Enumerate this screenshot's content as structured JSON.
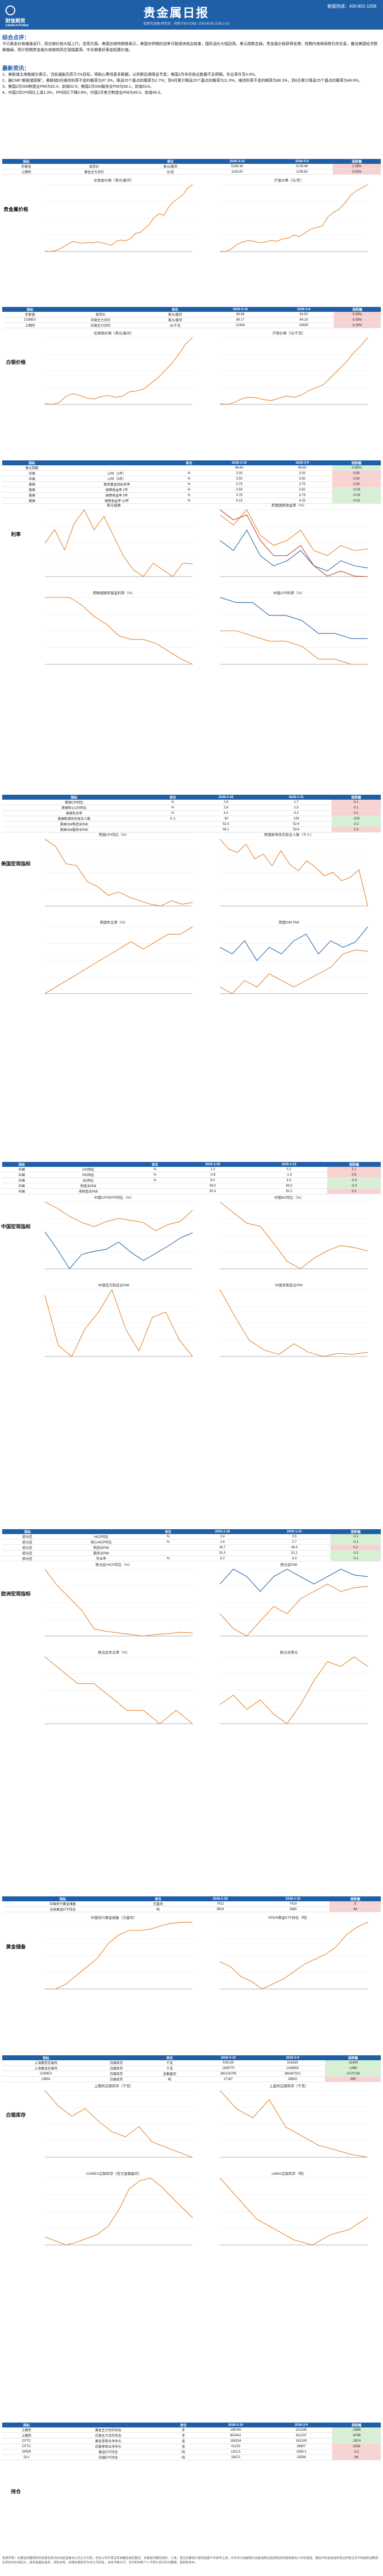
{
  "header": {
    "brand_line1": "财信期货",
    "brand_line2": "CAIXIN FUTURES",
    "title": "贵金属日报",
    "meta_line": "宏观与金融   研究员：向明   F3071068 / Z0014034   2026-3-10",
    "hotline": "客服热线：400-801-1058"
  },
  "summary": {
    "heading": "综合点评：",
    "text": "今日黄金价格偏强运行，而白银价格大幅上行。宏观方面，美国总统特朗普表示，美国对伊朗的战争可能很快就会结束，国际油价大幅回落，美元指数走弱，贵金属价格获得支撑。短期内地缘局势仍存反复，叠加美国经济数据偏弱，预计短期贵金属价格维持高位宽幅震荡，中长期看好黄金配置价值。"
  },
  "news": {
    "heading": "最新资讯：",
    "items": [
      "1、美联储主席鲍威尔表示，当前通胀仍高于2%目标，将耐心等待更多数据，以判断后续降息节奏；美国2月非农就业数据不及预期，失业率升至4.4%。",
      "2、据CME“美联储观察”，美联储3月维持利率不变的概率为97.3%，降息25个基点的概率为2.7%；到4月累计降息25个基点的概率为11.5%，维持利率不变的概率为88.3%，到6月累计降息25个基点的概率为48.6%。",
      "3、美国2月ISM制造业PMI为52.4，前值52.6；美国2月ISM服务业PMI为56.1，前值53.8。",
      "4、中国2月CPI同比上涨1.3%，PPI同比下降0.9%，中国2月官方制造业PMI为49.0，前值49.3。"
    ]
  },
  "gold": {
    "side": "贵金属价格",
    "headers": [
      "指标",
      "",
      "单位",
      "2026-3-10",
      "2026-3-9",
      "涨跌幅"
    ],
    "rows": [
      [
        "伦敦金",
        "现货价",
        "美元/盎司",
        "5186.36",
        "5126.64",
        "1.16%"
      ],
      [
        "上期所",
        "黄金主力合约",
        "元/克",
        "1143.60",
        "1138.82",
        "0.42%"
      ]
    ],
    "charts": [
      {
        "title": "伦敦金价格（美元/盎司）",
        "series": [
          [
            1320,
            1290,
            1330,
            1420,
            1580,
            1750,
            1880,
            1800,
            1770,
            1830,
            1790,
            1860,
            1800,
            1720,
            1650,
            1900,
            1960,
            1930,
            2050,
            2350,
            2400,
            2650,
            2900,
            3300,
            3500,
            3400,
            3900,
            4200,
            4400,
            4600,
            5000,
            5186
          ]
        ]
      },
      {
        "title": "沪金价格（元/克）",
        "series": [
          [
            270,
            265,
            300,
            360,
            390,
            410,
            400,
            380,
            390,
            410,
            400,
            430,
            440,
            480,
            460,
            510,
            560,
            580,
            600,
            720,
            780,
            820,
            900,
            1000,
            1060,
            1100,
            1140
          ]
        ]
      }
    ]
  },
  "silver": {
    "side": "白银价格",
    "headers": [
      "指标",
      "",
      "单位",
      "2026-3-10",
      "2026-3-9",
      "涨跌幅"
    ],
    "rows": [
      [
        "伦敦银",
        "现货价",
        "美元/盎司",
        "88.96",
        "84.50",
        "5.28%"
      ],
      [
        "COMEX",
        "白银主力合约",
        "美元/盎司",
        "89.17",
        "84.18",
        "5.93%"
      ],
      [
        "上期所",
        "白银主力合约",
        "元/千克",
        "21904",
        "20630",
        "6.18%"
      ]
    ],
    "charts": [
      {
        "title": "伦敦银价格（美元/盎司）",
        "series": [
          [
            16,
            15,
            17,
            24,
            27,
            25,
            22,
            21,
            24,
            25,
            23,
            24,
            29,
            30,
            32,
            38,
            44,
            52,
            60,
            70,
            82,
            89
          ]
        ]
      },
      {
        "title": "沪银价格（元/千克）",
        "series": [
          [
            3800,
            3600,
            4200,
            5200,
            5600,
            5400,
            4900,
            4700,
            5300,
            5900,
            5600,
            6100,
            7400,
            8200,
            9000,
            11000,
            13000,
            15000,
            17500,
            19500,
            21904
          ]
        ]
      }
    ]
  },
  "rates": {
    "side": "利率",
    "headers": [
      "指标",
      "",
      "单位",
      "2026-3-10",
      "2026-3-9",
      "涨跌幅"
    ],
    "rows": [
      [
        "美元指数",
        "",
        "",
        "98.90",
        "99.55",
        "-0.65%"
      ],
      [
        "中国",
        "LPR（1年）",
        "%",
        "3.00",
        "3.00",
        "0.00"
      ],
      [
        "中国",
        "LPR（5年）",
        "%",
        "3.50",
        "3.50",
        "0.00"
      ],
      [
        "美国",
        "联邦基金目标利率",
        "%",
        "3.75",
        "3.75",
        "0.00"
      ],
      [
        "美国",
        "国债收益率 2年",
        "%",
        "3.59",
        "3.62",
        "-0.03"
      ],
      [
        "美国",
        "国债收益率 5年",
        "%",
        "3.76",
        "3.79",
        "-0.03"
      ],
      [
        "美国",
        "国债收益率 10年",
        "%",
        "4.13",
        "4.15",
        "-0.02"
      ]
    ],
    "charts": [
      {
        "title": "美元指数",
        "series": [
          [
            102,
            104,
            101,
            105,
            107,
            104,
            106,
            103,
            100,
            98,
            97,
            99,
            98,
            97,
            99,
            98.9
          ]
        ]
      },
      {
        "title": "美国国债收益率（%）",
        "series": [
          [
            4.8,
            4.6,
            4.9,
            4.4,
            4.2,
            4.3,
            4.5,
            4.1,
            4.0,
            4.2,
            4.1,
            4.13
          ],
          [
            4.3,
            4.1,
            4.5,
            4.0,
            3.8,
            3.9,
            4.1,
            3.8,
            3.7,
            3.9,
            3.8,
            3.76
          ],
          [
            4.9,
            4.7,
            4.8,
            4.3,
            4.0,
            4.0,
            4.2,
            3.8,
            3.6,
            3.7,
            3.6,
            3.59
          ]
        ]
      },
      {
        "title": "美联储联邦基金利率（%）",
        "series": [
          [
            5.5,
            5.5,
            5.5,
            5.3,
            5.0,
            4.8,
            4.5,
            4.4,
            4.4,
            4.3,
            4.1,
            3.9,
            3.75
          ]
        ]
      },
      {
        "title": "中国LPR利率（%）",
        "series": [
          [
            3.65,
            3.65,
            3.55,
            3.45,
            3.45,
            3.35,
            3.1,
            3.1,
            3.0,
            3.0
          ],
          [
            4.3,
            4.2,
            4.2,
            3.95,
            3.95,
            3.85,
            3.6,
            3.6,
            3.5,
            3.5
          ]
        ]
      }
    ]
  },
  "us_data": {
    "side": "美国宏观指标",
    "headers": [
      "指标",
      "",
      "单位",
      "2026-2-28",
      "2026-1-31",
      "涨跌幅"
    ],
    "rows": [
      [
        "美国CPI同比",
        "",
        "%",
        "2.8",
        "2.7",
        "0.1"
      ],
      [
        "美国核心CPI同比",
        "",
        "%",
        "2.6",
        "2.5",
        "0.1"
      ],
      [
        "美国失业率",
        "",
        "%",
        "4.4",
        "4.3",
        "0.1"
      ],
      [
        "美国新增非农就业人数",
        "",
        "千人",
        "-92",
        "126",
        "-218"
      ],
      [
        "美国ISM制造业PMI",
        "",
        "",
        "52.4",
        "52.6",
        "-0.2"
      ],
      [
        "美国ISM服务业PMI",
        "",
        "",
        "56.1",
        "53.8",
        "2.3"
      ]
    ],
    "charts": [
      {
        "title": "美国CPI同比（%）",
        "series": [
          [
            6.4,
            6.0,
            5.0,
            4.9,
            4.0,
            3.7,
            3.2,
            3.4,
            3.1,
            2.9,
            2.7,
            2.6,
            2.9,
            2.7,
            2.8
          ]
        ]
      },
      {
        "title": "美国新增非农就业人数（千人）",
        "series": [
          [
            310,
            250,
            230,
            280,
            190,
            220,
            150,
            240,
            160,
            120,
            180,
            140,
            90,
            110,
            60,
            80,
            126,
            -92
          ]
        ]
      },
      {
        "title": "美国失业率（%）",
        "series": [
          [
            3.5,
            3.6,
            3.7,
            3.8,
            3.9,
            4.0,
            4.1,
            4.2,
            4.1,
            4.2,
            4.3,
            4.3,
            4.4
          ]
        ]
      },
      {
        "title": "美国ISM PMI",
        "series": [
          [
            47,
            46,
            48,
            47,
            49,
            48,
            47,
            48,
            49,
            50,
            52,
            52.6,
            52.4
          ],
          [
            53,
            52,
            54,
            51,
            53,
            52,
            54,
            55,
            52,
            54,
            53,
            53.8,
            56.1
          ]
        ]
      }
    ]
  },
  "cn_data": {
    "side": "中国宏观指标",
    "headers": [
      "指标",
      "",
      "单位",
      "2026-2-28",
      "2026-1-31",
      "涨跌幅"
    ],
    "rows": [
      [
        "中国",
        "CPI同比",
        "%",
        "1.3",
        "0.2",
        "1.1"
      ],
      [
        "中国",
        "PPI同比",
        "%",
        "-0.9",
        "-1.4",
        "0.5"
      ],
      [
        "中国",
        "M2同比",
        "%",
        "8.0",
        "8.3",
        "-0.3"
      ],
      [
        "中国",
        "制造业PMI",
        "",
        "49.0",
        "49.3",
        "-0.3"
      ],
      [
        "中国",
        "非制造业PMI",
        "",
        "50.4",
        "50.2",
        "0.2"
      ]
    ],
    "charts": [
      {
        "title": "中国CPI与PPI同比（%）",
        "series": [
          [
            2.1,
            1.5,
            0.7,
            0.1,
            -0.3,
            0.2,
            0.5,
            0.3,
            0.1,
            -0.7,
            -0.1,
            0.2,
            1.3
          ],
          [
            -0.8,
            -2.5,
            -4.4,
            -3.0,
            -2.7,
            -2.5,
            -1.8,
            -2.8,
            -3.6,
            -2.9,
            -2.2,
            -1.4,
            -0.9
          ]
        ]
      },
      {
        "title": "中国M2同比（%）",
        "series": [
          [
            12.6,
            11.6,
            10.6,
            10.3,
            8.7,
            7.0,
            6.3,
            7.3,
            8.0,
            8.5,
            8.3,
            8.0
          ]
        ]
      },
      {
        "title": "中国官方制造业PMI",
        "series": [
          [
            50.1,
            49.2,
            49.0,
            49.5,
            49.8,
            50.2,
            49.5,
            49.1,
            49.7,
            49.8,
            49.3,
            49.0
          ]
        ]
      },
      {
        "title": "中国非制造业PMI",
        "series": [
          [
            56.3,
            53.8,
            51.5,
            50.6,
            50.2,
            51.2,
            50.4,
            50.0,
            50.3,
            50.2,
            50.4
          ]
        ]
      }
    ]
  },
  "eu_data": {
    "side": "欧洲宏观指标",
    "headers": [
      "指标",
      "",
      "单位",
      "2026-2-28",
      "2026-1-31",
      "涨跌幅"
    ],
    "rows": [
      [
        "欧元区",
        "HICP同比",
        "%",
        "2.4",
        "2.5",
        "-0.1"
      ],
      [
        "欧元区",
        "核心HICP同比",
        "%",
        "2.6",
        "2.7",
        "-0.1"
      ],
      [
        "欧元区",
        "制造业PMI",
        "",
        "49.7",
        "49.5",
        "0.2"
      ],
      [
        "欧元区",
        "服务业PMI",
        "",
        "51.0",
        "51.2",
        "-0.2"
      ],
      [
        "欧元区",
        "失业率",
        "%",
        "6.2",
        "6.3",
        "-0.1"
      ]
    ],
    "charts": [
      {
        "title": "欧元区HICP同比（%）",
        "series": [
          [
            10.6,
            8.5,
            6.9,
            5.3,
            2.9,
            2.6,
            2.4,
            2.2,
            2.0,
            2.2,
            2.3,
            2.5,
            2.4
          ]
        ]
      },
      {
        "title": "欧元区PMI",
        "series": [
          [
            46,
            44,
            43,
            45,
            47,
            46,
            48,
            49,
            50,
            49,
            49.5,
            49.7
          ],
          [
            50,
            52,
            51,
            49,
            51,
            52,
            51,
            50,
            51,
            52,
            51.2,
            51.0
          ]
        ]
      },
      {
        "title": "欧元区失业率（%）",
        "series": [
          [
            6.7,
            6.6,
            6.5,
            6.5,
            6.4,
            6.3,
            6.3,
            6.2,
            6.3,
            6.2
          ]
        ]
      },
      {
        "title": "欧元兑美元",
        "series": [
          [
            1.08,
            1.1,
            1.07,
            1.09,
            1.06,
            1.04,
            1.08,
            1.13,
            1.17,
            1.16,
            1.18,
            1.16
          ]
        ]
      }
    ]
  },
  "holdings": {
    "side": "黄金储备",
    "headers": [
      "指标",
      "",
      "单位",
      "2026-2-28",
      "2026-1-31",
      "涨跌幅"
    ],
    "rows": [
      [
        "中国央行黄金储备",
        "",
        "万盎司",
        "7422",
        "7419",
        "3"
      ],
      [
        "全球黄金ETF持仓",
        "",
        "吨",
        "3924",
        "3880",
        "44"
      ]
    ],
    "charts": [
      {
        "title": "中国央行黄金储备（万盎司）",
        "series": [
          [
            6264,
            6264,
            6350,
            6500,
            6650,
            6800,
            7050,
            7200,
            7280,
            7280,
            7300,
            7360,
            7400,
            7419,
            7422
          ]
        ]
      },
      {
        "title": "SPDR黄金ETF持仓（吨）",
        "series": [
          [
            940,
            920,
            880,
            860,
            830,
            850,
            870,
            900,
            930,
            950,
            970,
            1000,
            1050,
            1080,
            1100
          ]
        ]
      }
    ]
  },
  "inventory": {
    "side": "白银库存",
    "headers": [
      "指标",
      "",
      "单位",
      "2026-3-10",
      "2026-3-9",
      "涨跌幅"
    ],
    "rows": [
      [
        "上海期货交易所",
        "白银库存",
        "千克",
        "505135",
        "516535",
        "-11400"
      ],
      [
        "上海黄金交易所",
        "白银库存",
        "千克",
        "1168770",
        "1169850",
        "-1080"
      ],
      [
        "COMEX",
        "白银库存",
        "金衡盎司",
        "382116795",
        "384287521",
        "-2170726"
      ],
      [
        "LBMA",
        "白银库存",
        "吨",
        "27187",
        "26892",
        "295"
      ]
    ],
    "charts": [
      {
        "title": "上期所白银库存（千克）",
        "series": [
          [
            1800000,
            1500000,
            1300000,
            1450000,
            1200000,
            1000000,
            900000,
            1100000,
            800000,
            700000,
            600000,
            505135
          ]
        ]
      },
      {
        "title": "上金所白银库存（千克）",
        "series": [
          [
            1900000,
            1700000,
            1600000,
            1800000,
            1500000,
            1400000,
            1300000,
            1250000,
            1200000,
            1168770
          ]
        ]
      },
      {
        "title": "COMEX白银库存（百万金衡盎司）",
        "series": [
          [
            310,
            295,
            280,
            290,
            305,
            320,
            350,
            410,
            490,
            520,
            530,
            500,
            460,
            420,
            382
          ]
        ]
      },
      {
        "title": "LBMA白银库存（吨）",
        "series": [
          [
            31000,
            29000,
            27000,
            26000,
            25000,
            24500,
            25500,
            26000,
            27187
          ]
        ]
      }
    ]
  },
  "positions": {
    "side": "持仓",
    "headers": [
      "指标",
      "",
      "单位",
      "2026-3-10",
      "2026-3-9",
      "涨跌幅"
    ],
    "rows": [
      [
        "上期所",
        "黄金主力合约持仓",
        "手",
        "198760",
        "201345",
        "-2585"
      ],
      [
        "上期所",
        "白银主力合约持仓",
        "手",
        "602441",
        "611237",
        "-8796"
      ],
      [
        "CFTC",
        "黄金非商业净多头",
        "张",
        "189234",
        "192108",
        "-2874"
      ],
      [
        "CFTC",
        "白银非商业净多头",
        "张",
        "41233",
        "38907",
        "2326"
      ],
      [
        "SPDR",
        "黄金ETF持仓",
        "吨",
        "1102.5",
        "1099.3",
        "3.2"
      ],
      [
        "SLV",
        "白银ETF持仓",
        "吨",
        "15672",
        "15588",
        "84"
      ]
    ]
  },
  "disclaimer": "免责声明：本报告所载资料的来源及观点的出处皆被本公司认为可靠，但本公司不保证其准确性或完整性。本报告所载的资料、工具、意见及推测只提供给客户作参考之用，并非作为或被视为出售或购买投资标的的邀请或向人作出邀请。报告中的信息或所表达的意见并不构成所述期货买卖的出价或征价，投资者据此投资，风险自担。本报告版权仅为本公司所有，未经书面许可，任何机构和个人不得以任何形式翻版、复制和发布。"
}
